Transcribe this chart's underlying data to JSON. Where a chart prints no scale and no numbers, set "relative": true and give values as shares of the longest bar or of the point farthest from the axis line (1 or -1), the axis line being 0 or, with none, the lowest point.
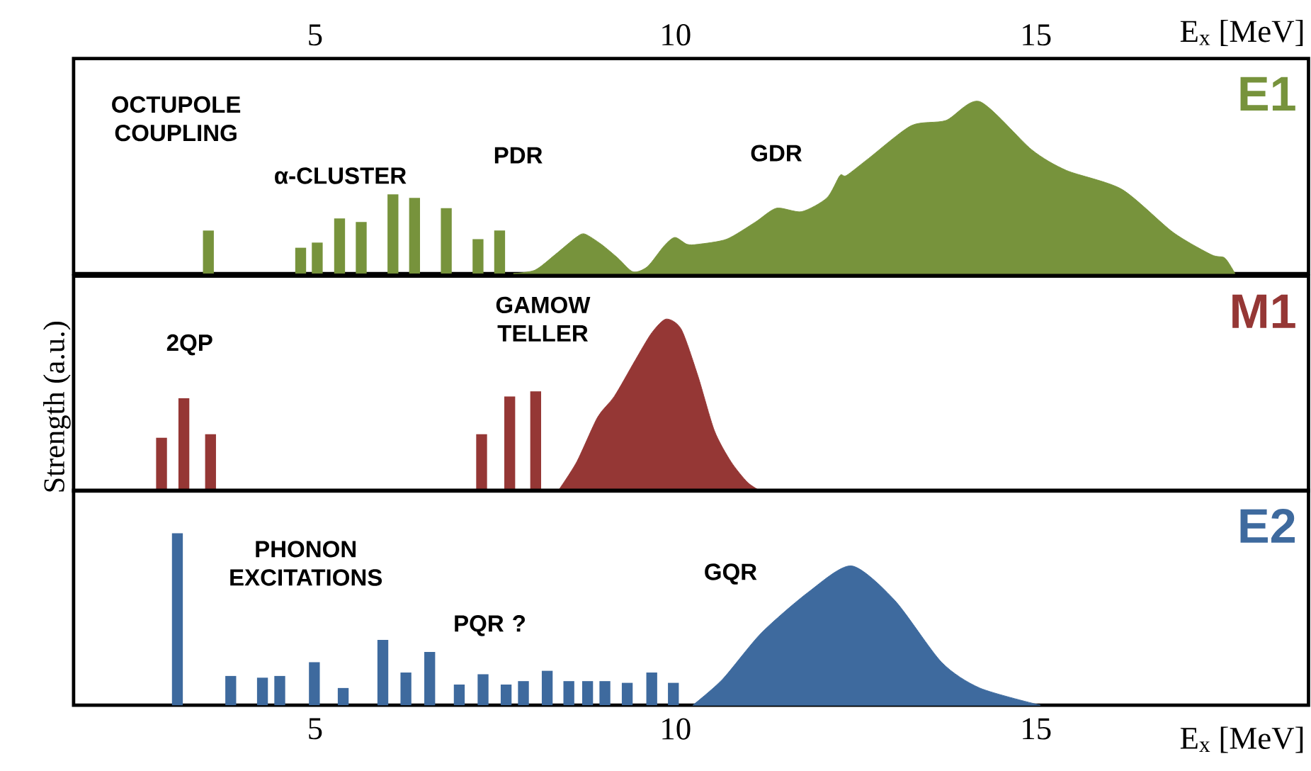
{
  "chart_data": [
    {
      "type": "bar",
      "title": "E1",
      "relative": true,
      "xlim": [
        1.65,
        18.78
      ],
      "xticks": [
        5,
        10,
        15
      ],
      "xlabel": "E$_{x}$ [MeV]",
      "tick_labels": "x",
      "annotations": [
        "OCTUPOLE COUPLING",
        "α-CLUSTER",
        "PDR",
        "GDR"
      ],
      "series": [
        {
          "color": "#77933c",
          "x": [
            3.52,
            4.8,
            5.03,
            5.34,
            5.64,
            6.08,
            6.38,
            6.82,
            7.26,
            7.56
          ],
          "values": [
            0.25,
            0.15,
            0.18,
            0.32,
            0.3,
            0.46,
            0.44,
            0.38,
            0.2,
            0.25
          ]
        },
        {
          "type": "area",
          "color": "#77933c",
          "x": [
            7.75,
            8.05,
            8.33,
            8.62,
            8.74,
            8.97,
            9.2,
            9.41,
            9.61,
            9.84,
            9.99,
            10.16,
            10.31,
            10.71,
            11.11,
            11.4,
            11.75,
            12.1,
            12.28,
            12.37,
            12.68,
            13.27,
            13.75,
            14.22,
            14.94,
            15.42,
            16.19,
            16.9,
            17.43,
            17.62,
            17.76
          ],
          "values": [
            0,
            0.02,
            0.11,
            0.21,
            0.23,
            0.17,
            0.09,
            0.01,
            0.04,
            0.16,
            0.21,
            0.17,
            0.17,
            0.2,
            0.3,
            0.38,
            0.36,
            0.44,
            0.57,
            0.57,
            0.67,
            0.86,
            0.89,
            1.0,
            0.72,
            0.6,
            0.49,
            0.24,
            0.11,
            0.09,
            0
          ]
        }
      ]
    },
    {
      "type": "bar",
      "title": "M1",
      "relative": true,
      "xlim": [
        1.65,
        18.78
      ],
      "ylabel": "Strength (a.u.)",
      "tick_labels": false,
      "annotations": [
        "2QP",
        "GAMOW TELLER"
      ],
      "series": [
        {
          "color": "#953735",
          "x": [
            2.87,
            3.18,
            3.55,
            7.31,
            7.7,
            8.06
          ],
          "values": [
            0.31,
            0.54,
            0.33,
            0.33,
            0.55,
            0.58
          ]
        },
        {
          "type": "area",
          "color": "#953735",
          "x": [
            8.37,
            8.63,
            8.92,
            9.15,
            9.44,
            9.67,
            9.87,
            10.08,
            10.31,
            10.54,
            10.77,
            11.0,
            11.18
          ],
          "values": [
            0,
            0.17,
            0.43,
            0.55,
            0.76,
            0.92,
            1.0,
            0.94,
            0.67,
            0.35,
            0.17,
            0.05,
            0
          ]
        }
      ]
    },
    {
      "type": "bar",
      "title": "E2",
      "relative": true,
      "xlim": [
        1.65,
        18.78
      ],
      "xticks": [
        5,
        10,
        15
      ],
      "xlabel": "E$_{x}$ [MeV]",
      "tick_labels": "x",
      "annotations": [
        "PHONON EXCITATIONS",
        "PQR ?",
        "GQR"
      ],
      "series": [
        {
          "color": "#3e6a9e",
          "x": [
            3.09,
            3.83,
            4.27,
            4.51,
            4.99,
            5.39,
            5.94,
            6.26,
            6.59,
            7.0,
            7.33,
            7.65,
            7.89,
            8.22,
            8.52,
            8.78,
            9.02,
            9.33,
            9.67,
            9.97
          ],
          "values": [
            1.0,
            0.17,
            0.16,
            0.17,
            0.25,
            0.1,
            0.38,
            0.19,
            0.31,
            0.12,
            0.18,
            0.12,
            0.14,
            0.2,
            0.14,
            0.14,
            0.14,
            0.13,
            0.19,
            0.13
          ]
        },
        {
          "type": "area",
          "color": "#3e6a9e",
          "x": [
            10.24,
            10.65,
            11.19,
            11.85,
            12.44,
            13.04,
            13.69,
            14.22,
            15.06
          ],
          "values": [
            0,
            0.15,
            0.42,
            0.66,
            0.81,
            0.61,
            0.25,
            0.1,
            0
          ]
        }
      ]
    }
  ]
}
